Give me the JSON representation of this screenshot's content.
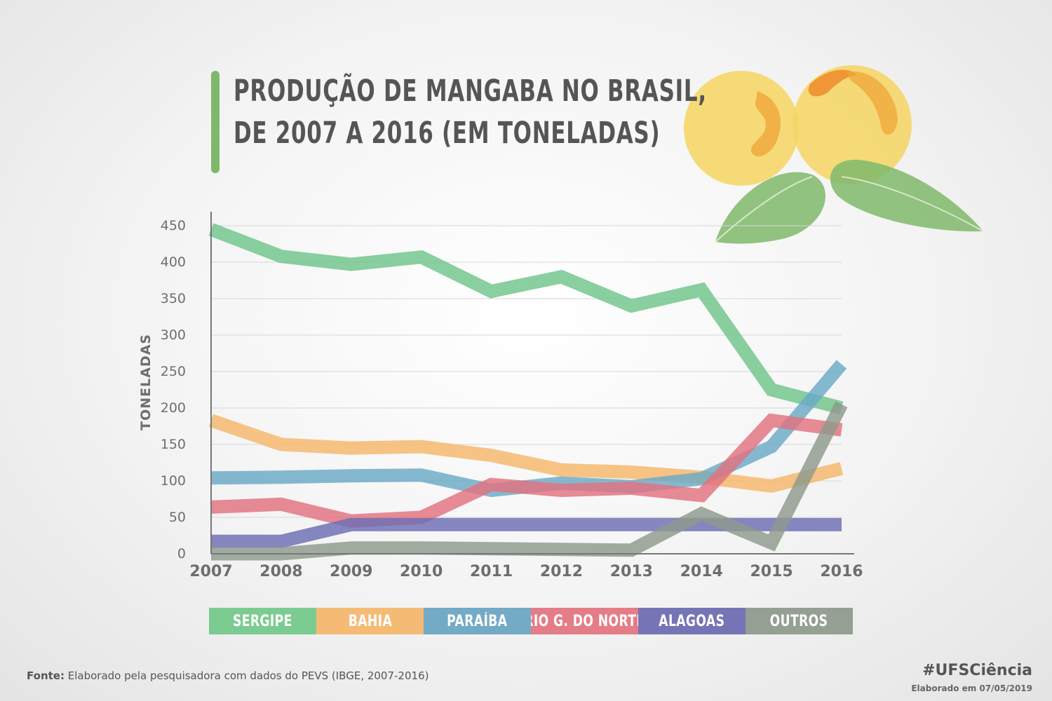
{
  "title_line1": "PRODUÇÃO DE MANGABA NO BRASIL,",
  "title_line2": "DE 2007 A 2016 (EM TONELADAS)",
  "chart_data": {
    "type": "line",
    "title": "PRODUÇÃO DE MANGABA NO BRASIL, DE 2007 A 2016 (EM TONELADAS)",
    "xlabel": "",
    "ylabel": "TONELADAS",
    "x": [
      "2007",
      "2008",
      "2009",
      "2010",
      "2011",
      "2012",
      "2013",
      "2014",
      "2015",
      "2016"
    ],
    "ylim": [
      0,
      450
    ],
    "yticks": [
      0,
      50,
      100,
      150,
      200,
      250,
      300,
      350,
      400,
      450
    ],
    "grid": true,
    "legend_position": "bottom",
    "series": [
      {
        "name": "SERGIPE",
        "color": "#6fc58a",
        "values": [
          445,
          408,
          397,
          407,
          360,
          380,
          340,
          362,
          225,
          200
        ]
      },
      {
        "name": "BAHIA",
        "color": "#f5b76a",
        "values": [
          183,
          150,
          145,
          147,
          135,
          115,
          112,
          105,
          93,
          117
        ]
      },
      {
        "name": "PARAÍBA",
        "color": "#6aa9c6",
        "values": [
          104,
          105,
          107,
          108,
          87,
          97,
          92,
          103,
          147,
          260
        ]
      },
      {
        "name": "RIO G. DO NORTE",
        "color": "#e2727f",
        "values": [
          64,
          68,
          45,
          50,
          95,
          87,
          90,
          80,
          183,
          170
        ]
      },
      {
        "name": "ALAGOAS",
        "color": "#6c6cb3",
        "values": [
          17,
          17,
          40,
          40,
          40,
          40,
          40,
          40,
          40,
          40
        ]
      },
      {
        "name": "OUTROS",
        "color": "#8e9a8c",
        "values": [
          0,
          0,
          8,
          8,
          7,
          6,
          5,
          55,
          15,
          205
        ]
      }
    ]
  },
  "legend": [
    {
      "label": "SERGIPE",
      "color": "#7ccb91"
    },
    {
      "label": "BAHIA",
      "color": "#f5bb75"
    },
    {
      "label": "PARAÍBA",
      "color": "#73aac6"
    },
    {
      "label": "RIO G. DO NORTE",
      "color": "#e47d88"
    },
    {
      "label": "ALAGOAS",
      "color": "#7575b6"
    },
    {
      "label": "OUTROS",
      "color": "#959f93"
    }
  ],
  "footer": {
    "fonte_label": "Fonte:",
    "fonte_text": " Elaborado pela pesquisadora com dados do PEVS (IBGE, 2007-2016)",
    "hashtag": "#UFSCiência",
    "elaborado": "Elaborado em 07/05/2019"
  }
}
